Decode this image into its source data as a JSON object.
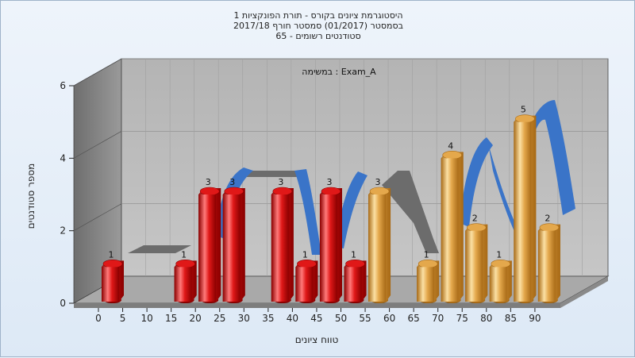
{
  "title_lines": [
    "היסטוגרמת ציונים בקורס - תורת הפונקציות 1",
    "בסמסטר  (01/2017)  סמסטר חורף  2017/18",
    "סטודנטים רשומים - 65"
  ],
  "chart_data": {
    "type": "bar",
    "title": "היסטוגרמת ציונים בקורס - תורת הפונקציות 1",
    "subtitle": "בסמסטר  (01/2017)  סמסטר חורף  2017/18 — סטודנטים רשומים - 65",
    "xlabel": "טווח ציונים",
    "ylabel": "מספר סטודנטים",
    "annotation": "במשימה : Exam_A",
    "x_ticks": [
      "0",
      "5",
      "10",
      "15",
      "20",
      "25",
      "30",
      "35",
      "40",
      "45",
      "50",
      "55",
      "60",
      "65",
      "70",
      "75",
      "80",
      "85",
      "90"
    ],
    "y_ticks": [
      0,
      2,
      4,
      6
    ],
    "ylim": [
      0,
      6
    ],
    "grid": true,
    "bars": [
      {
        "x": 0,
        "value": 1,
        "color": "red"
      },
      {
        "x": 15,
        "value": 1,
        "color": "red"
      },
      {
        "x": 20,
        "value": 3,
        "color": "red"
      },
      {
        "x": 25,
        "value": 3,
        "color": "red"
      },
      {
        "x": 35,
        "value": 3,
        "color": "red"
      },
      {
        "x": 40,
        "value": 1,
        "color": "red"
      },
      {
        "x": 45,
        "value": 3,
        "color": "red"
      },
      {
        "x": 50,
        "value": 1,
        "color": "red"
      },
      {
        "x": 55,
        "value": 3,
        "color": "gold"
      },
      {
        "x": 65,
        "value": 1,
        "color": "gold"
      },
      {
        "x": 70,
        "value": 4,
        "color": "gold"
      },
      {
        "x": 75,
        "value": 2,
        "color": "gold"
      },
      {
        "x": 80,
        "value": 1,
        "color": "gold"
      },
      {
        "x": 85,
        "value": 5,
        "color": "gold"
      },
      {
        "x": 90,
        "value": 2,
        "color": "gold"
      }
    ],
    "colors": {
      "red_light": "#ff7a7a",
      "red_mid": "#e01818",
      "red_dark": "#8a0000",
      "gold_light": "#fbe0a4",
      "gold_mid": "#e4a84c",
      "gold_dark": "#a86a16",
      "ribbon_blue": "#3a74c8",
      "ribbon_gray": "#6c6c6c"
    }
  }
}
